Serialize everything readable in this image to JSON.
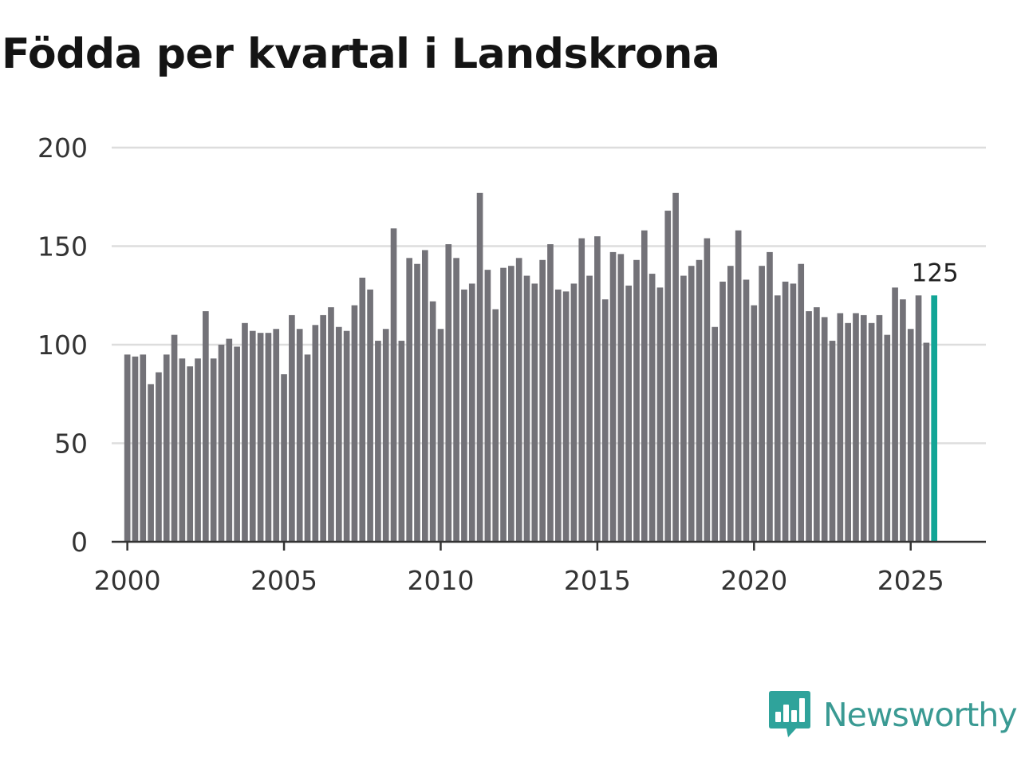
{
  "title": "Födda per kvartal i Landskrona",
  "brand": {
    "name": "Newsworthy",
    "icon": "newsworthy-logo-icon",
    "color": "#2fa39b"
  },
  "chart_data": {
    "type": "bar",
    "title": "Födda per kvartal i Landskrona",
    "xlabel": "",
    "ylabel": "",
    "ylim": [
      0,
      200
    ],
    "xlim": [
      1999.5,
      2027.4
    ],
    "yticks": [
      0,
      50,
      100,
      150,
      200
    ],
    "xticks": [
      2000,
      2005,
      2010,
      2015,
      2020,
      2025
    ],
    "grid": true,
    "bar_color": "#737278",
    "highlight_color": "#12a596",
    "start_year": 2000,
    "periods_per_year": 4,
    "values": [
      95,
      94,
      95,
      80,
      86,
      95,
      105,
      93,
      89,
      93,
      117,
      93,
      100,
      103,
      99,
      111,
      107,
      106,
      106,
      108,
      85,
      115,
      108,
      95,
      110,
      115,
      119,
      109,
      107,
      120,
      134,
      128,
      102,
      108,
      159,
      102,
      144,
      141,
      148,
      122,
      108,
      151,
      144,
      128,
      131,
      177,
      138,
      118,
      139,
      140,
      144,
      135,
      131,
      143,
      151,
      128,
      127,
      131,
      154,
      135,
      155,
      123,
      147,
      146,
      130,
      143,
      158,
      136,
      129,
      168,
      177,
      135,
      140,
      143,
      154,
      109,
      132,
      140,
      158,
      133,
      120,
      140,
      147,
      125,
      132,
      131,
      141,
      117,
      119,
      114,
      102,
      116,
      111,
      116,
      115,
      111,
      115,
      105,
      129,
      123,
      108,
      125,
      101,
      125
    ],
    "highlight": {
      "index": 103,
      "label": "125"
    }
  }
}
